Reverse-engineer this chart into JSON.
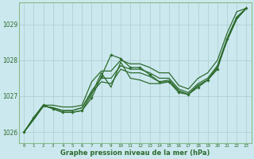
{
  "xlabel": "Graphe pression niveau de la mer (hPa)",
  "x_ticks": [
    0,
    1,
    2,
    3,
    4,
    5,
    6,
    7,
    8,
    9,
    10,
    11,
    12,
    13,
    14,
    15,
    16,
    17,
    18,
    19,
    20,
    21,
    22,
    23
  ],
  "ylim": [
    1025.7,
    1029.6
  ],
  "yticks": [
    1026,
    1027,
    1028,
    1029
  ],
  "bg_color": "#cce8ef",
  "grid_color": "#aacccc",
  "line_color": "#2d6b2d",
  "marker_color": "#2d6b2d",
  "series_main": [
    1026.0,
    1026.4,
    1026.75,
    1026.65,
    1026.55,
    1026.55,
    1026.6,
    1026.95,
    1027.55,
    1028.15,
    1028.05,
    1027.8,
    1027.8,
    1027.6,
    1027.4,
    1027.4,
    1027.1,
    1027.05,
    1027.25,
    1027.45,
    1027.75,
    1028.6,
    1029.2,
    1029.45
  ],
  "series_upper": [
    1026.0,
    1026.4,
    1026.75,
    1026.65,
    1026.55,
    1026.55,
    1026.6,
    1027.05,
    1027.65,
    1027.25,
    1027.95,
    1027.5,
    1027.45,
    1027.35,
    1027.35,
    1027.4,
    1027.15,
    1027.05,
    1027.3,
    1027.45,
    1027.8,
    1028.55,
    1029.15,
    1029.45
  ],
  "series_smooth1": [
    1026.0,
    1026.35,
    1026.72,
    1026.68,
    1026.6,
    1026.6,
    1026.68,
    1027.1,
    1027.4,
    1027.35,
    1027.75,
    1027.65,
    1027.65,
    1027.55,
    1027.4,
    1027.45,
    1027.15,
    1027.05,
    1027.3,
    1027.45,
    1027.8,
    1028.55,
    1029.15,
    1029.45
  ],
  "series_smooth2": [
    1026.0,
    1026.35,
    1026.72,
    1026.68,
    1026.6,
    1026.6,
    1026.68,
    1027.15,
    1027.5,
    1027.5,
    1027.85,
    1027.75,
    1027.75,
    1027.65,
    1027.5,
    1027.5,
    1027.2,
    1027.1,
    1027.35,
    1027.5,
    1027.85,
    1028.6,
    1029.2,
    1029.45
  ],
  "series_big_upper": [
    1026.0,
    1026.4,
    1026.75,
    1026.75,
    1026.7,
    1026.7,
    1026.75,
    1027.4,
    1027.7,
    1027.7,
    1028.0,
    1027.9,
    1027.9,
    1027.8,
    1027.65,
    1027.65,
    1027.3,
    1027.2,
    1027.5,
    1027.65,
    1028.0,
    1028.75,
    1029.35,
    1029.45
  ]
}
